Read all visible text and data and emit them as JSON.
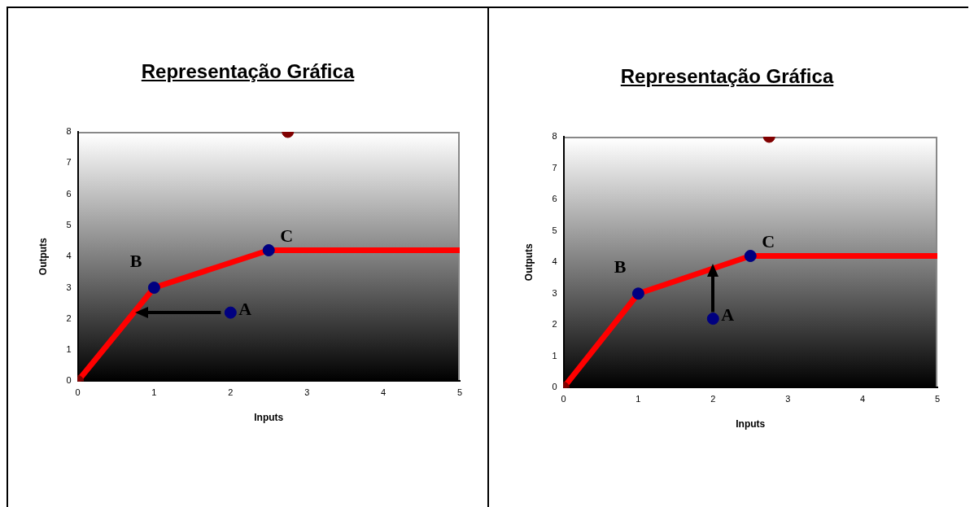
{
  "chart_data": [
    {
      "type": "line",
      "title": "Representação Gráfica",
      "xlabel": "Inputs",
      "ylabel": "Outputs",
      "xlim": [
        0,
        5
      ],
      "xticks": [
        0,
        1,
        2,
        3,
        4,
        5
      ],
      "ylim": [
        0,
        8
      ],
      "yticks": [
        0,
        1,
        2,
        3,
        4,
        5,
        6,
        7,
        8
      ],
      "grid": false,
      "legend": false,
      "series": [
        {
          "type": "line",
          "color": "#ff0000",
          "x": [
            0,
            1,
            2.5,
            5
          ],
          "values": [
            0,
            3,
            4.2,
            4.2
          ],
          "marker": "none"
        },
        {
          "type": "scatter",
          "color": "#000080",
          "x": [
            1,
            2.5,
            2
          ],
          "values": [
            3,
            4.2,
            2.2
          ],
          "marker": "circle"
        },
        {
          "type": "scatter",
          "color": "#800000",
          "x": [
            0,
            2.75
          ],
          "values": [
            0,
            8
          ],
          "marker": "circle"
        }
      ],
      "annotations": [
        {
          "text": "A",
          "x": 2,
          "y": 2.2
        },
        {
          "text": "B",
          "x": 1,
          "y": 3
        },
        {
          "text": "C",
          "x": 2.5,
          "y": 4.2
        }
      ]
    },
    {
      "type": "line",
      "title": "Representação Gráfica",
      "xlabel": "Inputs",
      "ylabel": "Outputs",
      "xlim": [
        0,
        5
      ],
      "xticks": [
        0,
        1,
        2,
        3,
        4,
        5
      ],
      "ylim": [
        0,
        8
      ],
      "yticks": [
        0,
        1,
        2,
        3,
        4,
        5,
        6,
        7,
        8
      ],
      "grid": false,
      "legend": false,
      "series": [
        {
          "type": "line",
          "color": "#ff0000",
          "x": [
            0,
            1,
            2.5,
            5
          ],
          "values": [
            0,
            3,
            4.2,
            4.2
          ],
          "marker": "none"
        },
        {
          "type": "scatter",
          "color": "#000080",
          "x": [
            1,
            2.5,
            2
          ],
          "values": [
            3,
            4.2,
            2.2
          ],
          "marker": "circle"
        },
        {
          "type": "scatter",
          "color": "#800000",
          "x": [
            0,
            2.75
          ],
          "values": [
            0,
            8
          ],
          "marker": "circle"
        }
      ],
      "annotations": [
        {
          "text": "A",
          "x": 2,
          "y": 2.2
        },
        {
          "text": "B",
          "x": 1,
          "y": 3
        },
        {
          "text": "C",
          "x": 2.5,
          "y": 4.2
        }
      ]
    }
  ]
}
